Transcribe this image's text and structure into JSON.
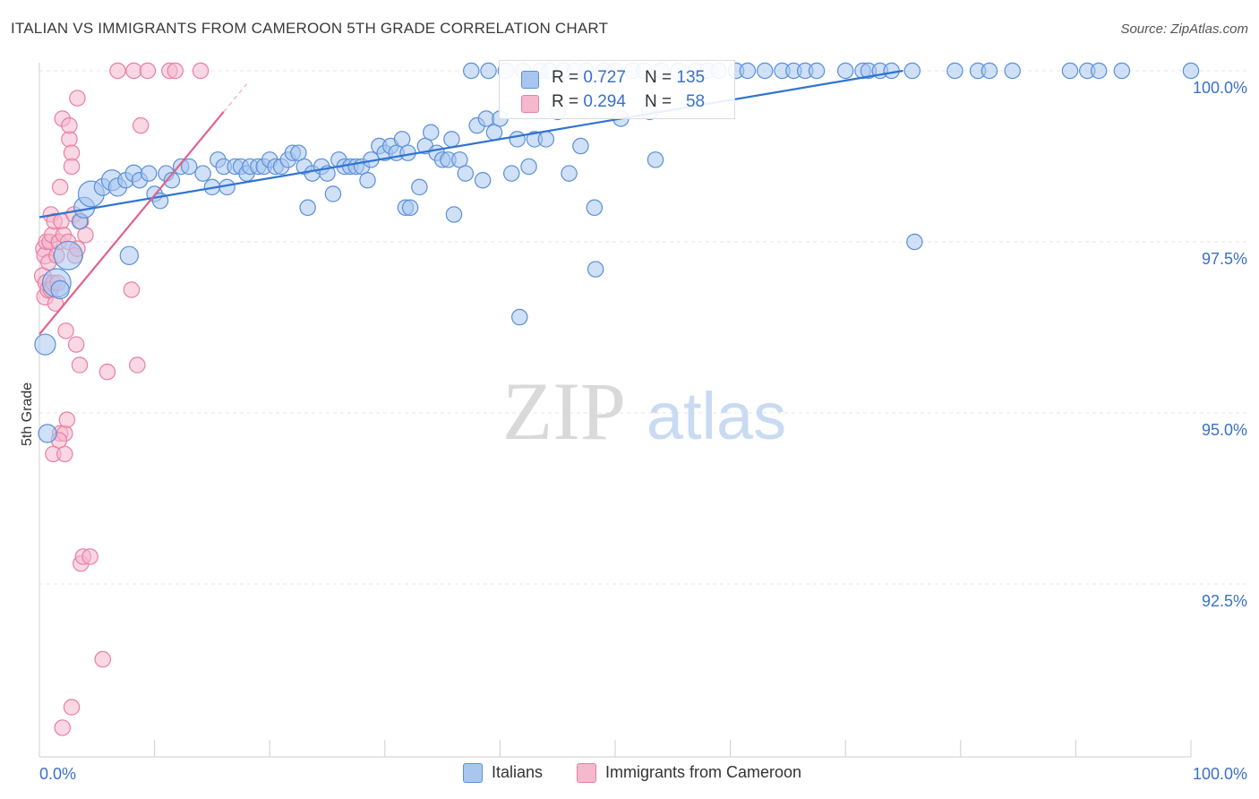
{
  "header": {
    "title": "ITALIAN VS IMMIGRANTS FROM CAMEROON 5TH GRADE CORRELATION CHART",
    "source": "Source: ZipAtlas.com"
  },
  "watermark": {
    "zip": "ZIP",
    "atlas": "atlas"
  },
  "legend_top": {
    "rows": [
      {
        "r_label": "R = ",
        "r_value": "0.727",
        "n_label": "N = ",
        "n_value": "135"
      },
      {
        "r_label": "R = ",
        "r_value": "0.294",
        "n_label": "N = ",
        "n_value": "58"
      }
    ]
  },
  "legend_bottom": {
    "items": [
      "Italians",
      "Immigrants from Cameroon"
    ]
  },
  "colors": {
    "blue_fill": "#a8c6f0",
    "blue_stroke": "#5b8fd8",
    "blue_line": "#2f74d0",
    "pink_fill": "#f6b8cc",
    "pink_stroke": "#e87fa2",
    "pink_line": "#e0628f",
    "tick_label": "#3a70c9",
    "grid": "#e4e4e4"
  },
  "chart_data": {
    "type": "scatter",
    "title": "ITALIAN VS IMMIGRANTS FROM CAMEROON 5TH GRADE CORRELATION CHART",
    "xlabel": "",
    "ylabel": "5th Grade",
    "xlim": [
      0,
      100
    ],
    "ylim": [
      90.2,
      100.4
    ],
    "x_tick_labels": [
      "0.0%",
      "100.0%"
    ],
    "y_ticks": [
      92.5,
      95.0,
      97.5,
      100.0
    ],
    "y_tick_labels": [
      "92.5%",
      "95.0%",
      "97.5%",
      "100.0%"
    ],
    "grid": true,
    "legend_position": "top-center",
    "series": [
      {
        "name": "Italians",
        "R": 0.727,
        "N": 135,
        "trend": {
          "x": [
            0,
            75
          ],
          "y": [
            97.86,
            100.0
          ]
        },
        "points": [
          [
            0.5,
            96.0,
            16
          ],
          [
            0.7,
            94.7,
            14
          ],
          [
            1.5,
            96.9,
            22
          ],
          [
            1.8,
            96.8,
            14
          ],
          [
            2.5,
            97.3,
            22
          ],
          [
            3.5,
            97.8,
            12
          ],
          [
            3.9,
            98.0,
            16
          ],
          [
            4.5,
            98.2,
            20
          ],
          [
            5.5,
            98.3,
            13
          ],
          [
            6.3,
            98.4,
            16
          ],
          [
            6.8,
            98.3,
            14
          ],
          [
            7.5,
            98.4,
            12
          ],
          [
            7.8,
            97.3,
            14
          ],
          [
            8.2,
            98.5,
            13
          ],
          [
            8.7,
            98.4,
            12
          ],
          [
            9.5,
            98.5,
            12
          ],
          [
            10.0,
            98.2,
            12
          ],
          [
            10.5,
            98.1,
            12
          ],
          [
            11.0,
            98.5,
            12
          ],
          [
            11.5,
            98.4,
            12
          ],
          [
            12.3,
            98.6,
            12
          ],
          [
            13.0,
            98.6,
            12
          ],
          [
            14.2,
            98.5,
            12
          ],
          [
            15.0,
            98.3,
            12
          ],
          [
            15.5,
            98.7,
            12
          ],
          [
            16.0,
            98.6,
            12
          ],
          [
            16.3,
            98.3,
            12
          ],
          [
            17.0,
            98.6,
            12
          ],
          [
            17.5,
            98.6,
            12
          ],
          [
            18.0,
            98.5,
            12
          ],
          [
            18.3,
            98.6,
            12
          ],
          [
            19.0,
            98.6,
            12
          ],
          [
            19.5,
            98.6,
            12
          ],
          [
            20.0,
            98.7,
            12
          ],
          [
            20.5,
            98.6,
            12
          ],
          [
            21.0,
            98.6,
            12
          ],
          [
            21.6,
            98.7,
            12
          ],
          [
            22.0,
            98.8,
            12
          ],
          [
            22.5,
            98.8,
            12
          ],
          [
            23.0,
            98.6,
            12
          ],
          [
            23.3,
            98.0,
            12
          ],
          [
            23.7,
            98.5,
            12
          ],
          [
            24.5,
            98.6,
            12
          ],
          [
            25.0,
            98.5,
            12
          ],
          [
            25.5,
            98.2,
            12
          ],
          [
            26.0,
            98.7,
            12
          ],
          [
            26.5,
            98.6,
            12
          ],
          [
            27.0,
            98.6,
            12
          ],
          [
            27.5,
            98.6,
            12
          ],
          [
            28.0,
            98.6,
            12
          ],
          [
            28.5,
            98.4,
            12
          ],
          [
            28.8,
            98.7,
            12
          ],
          [
            29.5,
            98.9,
            12
          ],
          [
            30.0,
            98.8,
            12
          ],
          [
            30.5,
            98.9,
            12
          ],
          [
            31.0,
            98.8,
            12
          ],
          [
            31.5,
            99.0,
            12
          ],
          [
            32.0,
            98.8,
            12
          ],
          [
            31.8,
            98.0,
            12
          ],
          [
            32.2,
            98.0,
            12
          ],
          [
            33.0,
            98.3,
            12
          ],
          [
            33.5,
            98.9,
            12
          ],
          [
            34.0,
            99.1,
            12
          ],
          [
            34.5,
            98.8,
            12
          ],
          [
            35.0,
            98.7,
            12
          ],
          [
            35.5,
            98.7,
            12
          ],
          [
            35.8,
            99.0,
            12
          ],
          [
            36.0,
            97.9,
            12
          ],
          [
            36.5,
            98.7,
            12
          ],
          [
            37.0,
            98.5,
            12
          ],
          [
            37.5,
            100.0,
            12
          ],
          [
            38.0,
            99.2,
            12
          ],
          [
            38.5,
            98.4,
            12
          ],
          [
            38.8,
            99.3,
            12
          ],
          [
            39.0,
            100.0,
            12
          ],
          [
            39.5,
            99.1,
            12
          ],
          [
            40.0,
            99.3,
            12
          ],
          [
            40.5,
            100.0,
            12
          ],
          [
            41.0,
            98.5,
            12
          ],
          [
            41.5,
            99.0,
            12
          ],
          [
            41.7,
            96.4,
            12
          ],
          [
            42.0,
            100.0,
            12
          ],
          [
            42.5,
            98.6,
            12
          ],
          [
            43.0,
            99.0,
            12
          ],
          [
            43.5,
            100.0,
            12
          ],
          [
            44.0,
            99.0,
            12
          ],
          [
            44.3,
            100.0,
            12
          ],
          [
            45.0,
            99.4,
            12
          ],
          [
            45.5,
            100.0,
            12
          ],
          [
            46.0,
            98.5,
            12
          ],
          [
            46.5,
            100.0,
            12
          ],
          [
            47.0,
            98.9,
            12
          ],
          [
            47.5,
            100.0,
            12
          ],
          [
            48.2,
            98.0,
            12
          ],
          [
            48.3,
            97.1,
            12
          ],
          [
            49.0,
            100.0,
            12
          ],
          [
            50.0,
            100.0,
            12
          ],
          [
            50.5,
            99.3,
            12
          ],
          [
            51.5,
            100.0,
            12
          ],
          [
            52.5,
            100.0,
            12
          ],
          [
            53.0,
            99.4,
            12
          ],
          [
            53.5,
            98.7,
            12
          ],
          [
            54.0,
            100.0,
            12
          ],
          [
            55.5,
            100.0,
            12
          ],
          [
            57.0,
            100.0,
            12
          ],
          [
            58.0,
            100.0,
            12
          ],
          [
            59.0,
            100.0,
            12
          ],
          [
            60.5,
            100.0,
            12
          ],
          [
            61.5,
            100.0,
            12
          ],
          [
            63.0,
            100.0,
            12
          ],
          [
            64.5,
            100.0,
            12
          ],
          [
            65.5,
            100.0,
            12
          ],
          [
            66.5,
            100.0,
            12
          ],
          [
            67.5,
            100.0,
            12
          ],
          [
            70.0,
            100.0,
            12
          ],
          [
            71.5,
            100.0,
            12
          ],
          [
            72.0,
            100.0,
            12
          ],
          [
            73.0,
            100.0,
            12
          ],
          [
            74.0,
            100.0,
            12
          ],
          [
            75.8,
            100.0,
            12
          ],
          [
            76.0,
            97.5,
            12
          ],
          [
            79.5,
            100.0,
            12
          ],
          [
            81.5,
            100.0,
            12
          ],
          [
            82.5,
            100.0,
            12
          ],
          [
            84.5,
            100.0,
            12
          ],
          [
            89.5,
            100.0,
            12
          ],
          [
            91.0,
            100.0,
            12
          ],
          [
            92.0,
            100.0,
            12
          ],
          [
            94.0,
            100.0,
            12
          ],
          [
            100.0,
            100.0,
            12
          ]
        ]
      },
      {
        "name": "Immigrants from Cameroon",
        "R": 0.294,
        "N": 58,
        "trend": {
          "x": [
            0,
            16
          ],
          "y": [
            96.15,
            99.4
          ]
        },
        "points": [
          [
            0.3,
            97.0,
            13
          ],
          [
            0.4,
            97.4,
            13
          ],
          [
            0.5,
            97.3,
            13
          ],
          [
            0.5,
            96.7,
            13
          ],
          [
            0.6,
            96.9,
            13
          ],
          [
            0.6,
            97.5,
            12
          ],
          [
            0.8,
            96.8,
            13
          ],
          [
            0.8,
            97.2,
            12
          ],
          [
            0.9,
            97.5,
            12
          ],
          [
            1.0,
            97.9,
            12
          ],
          [
            1.0,
            96.8,
            12
          ],
          [
            1.1,
            97.6,
            12
          ],
          [
            1.2,
            96.9,
            12
          ],
          [
            1.3,
            97.8,
            12
          ],
          [
            1.4,
            96.6,
            12
          ],
          [
            1.5,
            97.3,
            12
          ],
          [
            1.6,
            96.9,
            12
          ],
          [
            1.7,
            97.5,
            12
          ],
          [
            1.8,
            98.3,
            12
          ],
          [
            1.8,
            94.7,
            12
          ],
          [
            1.9,
            97.8,
            12
          ],
          [
            2.0,
            99.3,
            12
          ],
          [
            2.1,
            97.6,
            12
          ],
          [
            2.2,
            94.7,
            12
          ],
          [
            2.3,
            96.2,
            12
          ],
          [
            2.4,
            94.9,
            12
          ],
          [
            2.5,
            97.5,
            12
          ],
          [
            2.6,
            99.0,
            12
          ],
          [
            2.6,
            99.2,
            12
          ],
          [
            2.8,
            98.8,
            12
          ],
          [
            2.8,
            98.6,
            12
          ],
          [
            3.0,
            97.9,
            12
          ],
          [
            3.1,
            97.3,
            12
          ],
          [
            3.2,
            96.0,
            12
          ],
          [
            3.3,
            97.4,
            12
          ],
          [
            3.3,
            99.6,
            12
          ],
          [
            3.5,
            95.7,
            12
          ],
          [
            3.6,
            97.8,
            12
          ],
          [
            3.6,
            92.8,
            12
          ],
          [
            3.8,
            92.9,
            12
          ],
          [
            4.0,
            97.6,
            12
          ],
          [
            4.4,
            92.9,
            12
          ],
          [
            5.5,
            91.4,
            12
          ],
          [
            2.8,
            90.7,
            12
          ],
          [
            2.0,
            90.4,
            12
          ],
          [
            5.9,
            95.6,
            12
          ],
          [
            6.8,
            100.0,
            12
          ],
          [
            8.2,
            100.0,
            12
          ],
          [
            8.5,
            95.7,
            12
          ],
          [
            8.8,
            99.2,
            12
          ],
          [
            9.4,
            100.0,
            12
          ],
          [
            11.3,
            100.0,
            12
          ],
          [
            11.8,
            100.0,
            12
          ],
          [
            14.0,
            100.0,
            12
          ],
          [
            8.0,
            96.8,
            12
          ],
          [
            1.2,
            94.4,
            12
          ],
          [
            2.2,
            94.4,
            12
          ],
          [
            1.7,
            94.6,
            12
          ]
        ]
      }
    ]
  }
}
